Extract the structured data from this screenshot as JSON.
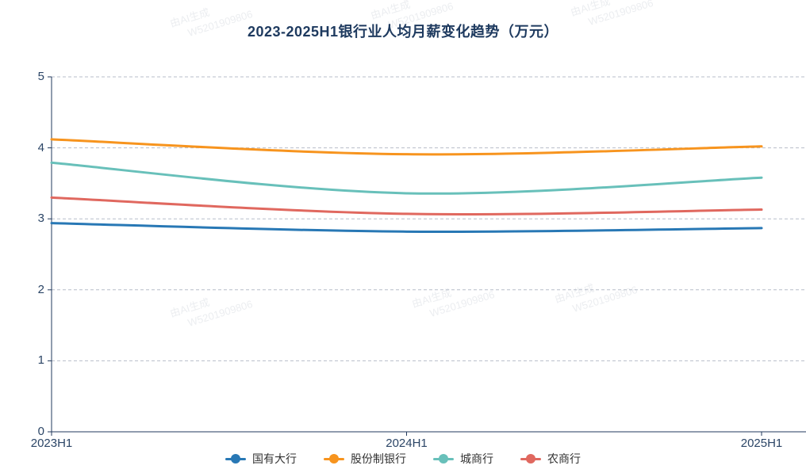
{
  "title": "2023-2025H1银行业人均月薪变化趋势（万元）",
  "watermark": {
    "line1": "由AI生成",
    "line2": "W5201909806"
  },
  "chart_data": {
    "type": "line",
    "title": "2023-2025H1银行业人均月薪变化趋势（万元）",
    "categories": [
      "2023H1",
      "2024H1",
      "2025H1"
    ],
    "x_tick_labels": [
      "2023H1",
      "2024H1",
      "2025H1"
    ],
    "series": [
      {
        "name": "国有大行",
        "color": "#2878b5",
        "values": [
          2.94,
          2.82,
          2.87
        ]
      },
      {
        "name": "股份制银行",
        "color": "#f7941e",
        "values": [
          4.12,
          3.91,
          4.02
        ]
      },
      {
        "name": "城商行",
        "color": "#68c0ba",
        "values": [
          3.79,
          3.36,
          3.58
        ]
      },
      {
        "name": "农商行",
        "color": "#e0685f",
        "values": [
          3.3,
          3.07,
          3.13
        ]
      }
    ],
    "xlabel": "",
    "ylabel": "",
    "ylim": [
      0,
      5
    ],
    "y_ticks": [
      0,
      1,
      2,
      3,
      4,
      5
    ],
    "grid": true,
    "grid_style": "dashed",
    "smooth": true,
    "legend_position": "bottom"
  }
}
